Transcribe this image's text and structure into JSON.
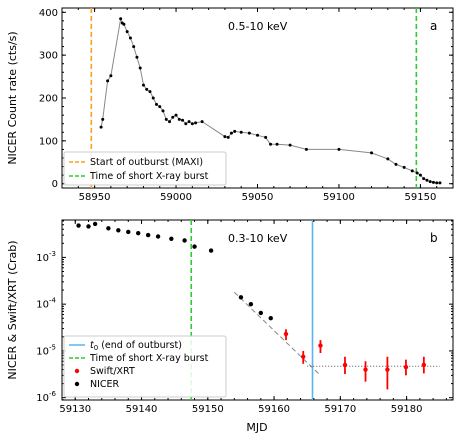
{
  "chart_data": [
    {
      "type": "line",
      "panel_label": "a",
      "energy_label": "0.5-10 keV",
      "ylabel": "NICER Count rate (cts/s)",
      "xlim": [
        58930,
        59170
      ],
      "ylim": [
        -10,
        410
      ],
      "xticks": [
        58950,
        59000,
        59050,
        59100,
        59150
      ],
      "xtick_labels": [
        "58950",
        "59000",
        "59050",
        "59100",
        "59150"
      ],
      "yticks": [
        0,
        100,
        200,
        300,
        400
      ],
      "ytick_labels": [
        "0",
        "100",
        "200",
        "300",
        "400"
      ],
      "series": [
        {
          "style": "line+markers",
          "color": "#000000",
          "x": [
            58954,
            58955,
            58958,
            58960,
            58966,
            58967,
            58968,
            58970,
            58972,
            58974,
            58976,
            58978,
            58980,
            58982,
            58984,
            58986,
            58988,
            58990,
            58992,
            58994,
            58996,
            58998,
            59000,
            59002,
            59004,
            59006,
            59008,
            59010,
            59012,
            59016,
            59030,
            59032,
            59034,
            59036,
            59040,
            59045,
            59050,
            59055,
            59058,
            59062,
            59070,
            59080,
            59100,
            59120,
            59130,
            59135,
            59140,
            59145,
            59148,
            59150,
            59152,
            59154,
            59156,
            59158,
            59160,
            59162
          ],
          "y": [
            132,
            150,
            240,
            252,
            385,
            375,
            372,
            355,
            340,
            320,
            295,
            270,
            230,
            220,
            215,
            200,
            185,
            180,
            170,
            150,
            145,
            155,
            160,
            150,
            148,
            140,
            145,
            140,
            142,
            145,
            110,
            108,
            118,
            122,
            120,
            118,
            113,
            108,
            92,
            92,
            90,
            80,
            80,
            72,
            58,
            45,
            38,
            30,
            25,
            20,
            12,
            8,
            5,
            3,
            2,
            2
          ]
        }
      ],
      "vlines": [
        {
          "x": 58948,
          "color": "#ff9f1c",
          "label": "Start of outburst (MAXI)"
        },
        {
          "x": 59147.5,
          "color": "#2ecc2e",
          "label": "Time of short X-ray burst"
        }
      ],
      "legend": {
        "placement": "lower-left",
        "entries": [
          {
            "label": "Start of outburst (MAXI)",
            "color": "#ff9f1c",
            "style": "dashed"
          },
          {
            "label": "Time of short X-ray burst",
            "color": "#2ecc2e",
            "style": "dashed"
          }
        ]
      }
    },
    {
      "type": "scatter",
      "panel_label": "b",
      "energy_label": "0.3-10 keV",
      "ylabel": "NICER & Swift/XRT (Crab)",
      "xlabel": "MJD",
      "scale_y": "log",
      "xlim": [
        59128,
        59187
      ],
      "ylim_log10": [
        -6.05,
        -2.2
      ],
      "xticks": [
        59130,
        59140,
        59150,
        59160,
        59170,
        59180
      ],
      "xtick_labels": [
        "59130",
        "59140",
        "59150",
        "59160",
        "59170",
        "59180"
      ],
      "yticks_log10": [
        -6,
        -5,
        -4,
        -3
      ],
      "ytick_labels": [
        "10^{-6}",
        "10^{-5}",
        "10^{-4}",
        "10^{-3}"
      ],
      "series": [
        {
          "name": "NICER",
          "color": "#000000",
          "x": [
            59130.5,
            59132,
            59133,
            59135,
            59136.5,
            59138,
            59139.5,
            59141,
            59142.5,
            59144.5,
            59146.5,
            59148,
            59150.5,
            59155,
            59156.5,
            59158,
            59159.5
          ],
          "y": [
            0.0048,
            0.0046,
            0.0052,
            0.0042,
            0.0038,
            0.0035,
            0.0033,
            0.003,
            0.0028,
            0.0025,
            0.0023,
            0.0017,
            0.0014,
            0.00014,
            0.0001,
            6.5e-05,
            5e-05
          ]
        },
        {
          "name": "Swift/XRT",
          "color": "#ff0000",
          "x": [
            59161.8,
            59164.4,
            59167,
            59170.7,
            59173.8,
            59177.1,
            59179.9,
            59182.6
          ],
          "y": [
            2.3e-05,
            7.5e-06,
            1.3e-05,
            5e-06,
            4e-06,
            4e-06,
            4.5e-06,
            5e-06
          ],
          "err_lo": [
            1.7e-05,
            5.3e-06,
            9e-06,
            3.2e-06,
            2.2e-06,
            1.5e-06,
            3e-06,
            3.3e-06
          ],
          "err_hi": [
            2.9e-05,
            1e-05,
            1.7e-05,
            7.5e-06,
            6e-06,
            7.5e-06,
            6.5e-06,
            7.5e-06
          ]
        }
      ],
      "fit_line": {
        "x": [
          59154,
          59167
        ],
        "y": [
          0.00018,
          3e-06
        ],
        "color": "#888888",
        "style": "dashed"
      },
      "hline": {
        "y": 4.7e-06,
        "x_from": 59165,
        "x_to": 59185,
        "color": "#555555",
        "style": "dotted"
      },
      "vlines": [
        {
          "x": 59147.5,
          "color": "#2ecc2e",
          "style": "dashed",
          "label": "Time of short X-ray burst"
        },
        {
          "x": 59165.8,
          "color": "#5ab4f0",
          "style": "solid",
          "label": "t_0 (end of outburst)"
        }
      ],
      "legend": {
        "placement": "lower-left",
        "entries": [
          {
            "label": "t_0 (end of outburst)",
            "color": "#5ab4f0",
            "style": "solid-line"
          },
          {
            "label": "Time of short X-ray burst",
            "color": "#2ecc2e",
            "style": "dashed-line"
          },
          {
            "label": "Swift/XRT",
            "color": "#ff0000",
            "style": "dot"
          },
          {
            "label": "NICER",
            "color": "#000000",
            "style": "dot"
          }
        ]
      }
    }
  ]
}
